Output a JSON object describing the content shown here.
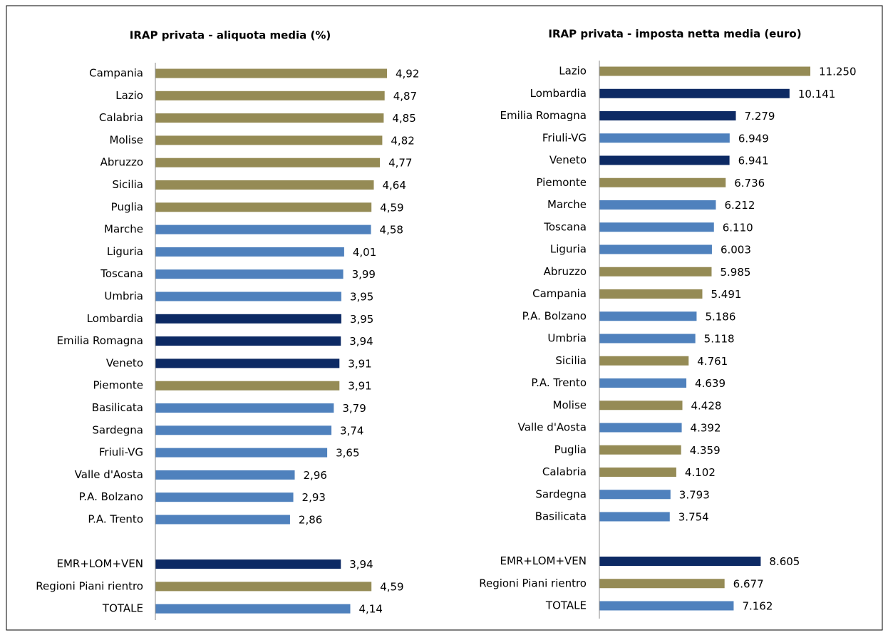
{
  "chart_data": [
    {
      "type": "bar",
      "orientation": "horizontal",
      "title": "IRAP privata - aliquota media (%)",
      "categories": [
        "Campania",
        "Lazio",
        "Calabria",
        "Molise",
        "Abruzzo",
        "Sicilia",
        "Puglia",
        "Marche",
        "Liguria",
        "Toscana",
        "Umbria",
        "Lombardia",
        "Emilia Romagna",
        "Veneto",
        "Piemonte",
        "Basilicata",
        "Sardegna",
        "Friuli-VG",
        "Valle d'Aosta",
        "P.A. Bolzano",
        "P.A. Trento",
        null,
        "EMR+LOM+VEN",
        "Regioni Piani rientro",
        "TOTALE"
      ],
      "values": [
        4.92,
        4.87,
        4.85,
        4.82,
        4.77,
        4.64,
        4.59,
        4.58,
        4.01,
        3.99,
        3.95,
        3.95,
        3.94,
        3.91,
        3.91,
        3.79,
        3.74,
        3.65,
        2.96,
        2.93,
        2.86,
        null,
        3.94,
        4.59,
        4.14
      ],
      "value_labels": [
        "4,92",
        "4,87",
        "4,85",
        "4,82",
        "4,77",
        "4,64",
        "4,59",
        "4,58",
        "4,01",
        "3,99",
        "3,95",
        "3,95",
        "3,94",
        "3,91",
        "3,91",
        "3,79",
        "3,74",
        "3,65",
        "2,96",
        "2,93",
        "2,86",
        null,
        "3,94",
        "4,59",
        "4,14"
      ],
      "colors": [
        "#958b55",
        "#958b55",
        "#958b55",
        "#958b55",
        "#958b55",
        "#958b55",
        "#958b55",
        "#4f81bd",
        "#4f81bd",
        "#4f81bd",
        "#4f81bd",
        "#0d2a64",
        "#0d2a64",
        "#0d2a64",
        "#958b55",
        "#4f81bd",
        "#4f81bd",
        "#4f81bd",
        "#4f81bd",
        "#4f81bd",
        "#4f81bd",
        null,
        "#0d2a64",
        "#958b55",
        "#4f81bd"
      ]
    },
    {
      "type": "bar",
      "orientation": "horizontal",
      "title": "IRAP privata - imposta netta media (euro)",
      "categories": [
        "Lazio",
        "Lombardia",
        "Emilia Romagna",
        "Friuli-VG",
        "Veneto",
        "Piemonte",
        "Marche",
        "Toscana",
        "Liguria",
        "Abruzzo",
        "Campania",
        "P.A. Bolzano",
        "Umbria",
        "Sicilia",
        "P.A. Trento",
        "Molise",
        "Valle d'Aosta",
        "Puglia",
        "Calabria",
        "Sardegna",
        "Basilicata",
        null,
        "EMR+LOM+VEN",
        "Regioni Piani rientro",
        "TOTALE"
      ],
      "values": [
        11250,
        10141,
        7279,
        6949,
        6941,
        6736,
        6212,
        6110,
        6003,
        5985,
        5491,
        5186,
        5118,
        4761,
        4639,
        4428,
        4392,
        4359,
        4102,
        3793,
        3754,
        null,
        8605,
        6677,
        7162
      ],
      "value_labels": [
        "11.250",
        "10.141",
        "7.279",
        "6.949",
        "6.941",
        "6.736",
        "6.212",
        "6.110",
        "6.003",
        "5.985",
        "5.491",
        "5.186",
        "5.118",
        "4.761",
        "4.639",
        "4.428",
        "4.392",
        "4.359",
        "4.102",
        "3.793",
        "3.754",
        null,
        "8.605",
        "6.677",
        "7.162"
      ],
      "colors": [
        "#958b55",
        "#0d2a64",
        "#0d2a64",
        "#4f81bd",
        "#0d2a64",
        "#958b55",
        "#4f81bd",
        "#4f81bd",
        "#4f81bd",
        "#958b55",
        "#958b55",
        "#4f81bd",
        "#4f81bd",
        "#958b55",
        "#4f81bd",
        "#958b55",
        "#4f81bd",
        "#958b55",
        "#958b55",
        "#4f81bd",
        "#4f81bd",
        null,
        "#0d2a64",
        "#958b55",
        "#4f81bd"
      ]
    }
  ]
}
